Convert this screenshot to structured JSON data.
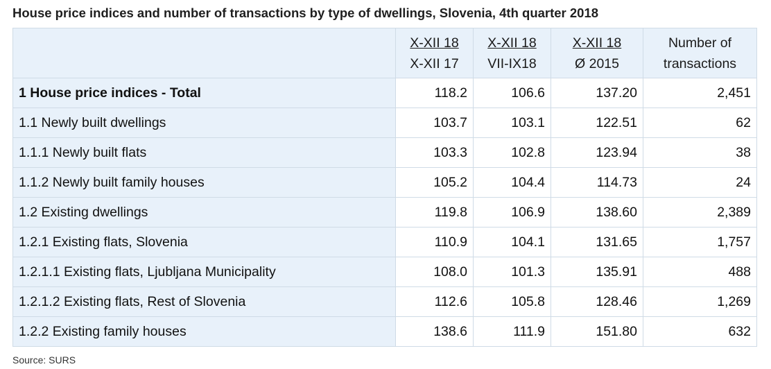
{
  "title": "House price indices and number of transactions by type of dwellings, Slovenia, 4th quarter 2018",
  "table": {
    "headers": [
      {
        "top": "",
        "bottom": ""
      },
      {
        "top": "X-XII 18",
        "bottom": "X-XII 17"
      },
      {
        "top": "X-XII 18",
        "bottom": "VII-IX18"
      },
      {
        "top": "X-XII 18",
        "bottom": "Ø 2015"
      },
      {
        "top": "Number of",
        "bottom": "transactions"
      }
    ],
    "rows": [
      {
        "label": "1 House price indices - Total",
        "c1": "118.2",
        "c2": "106.6",
        "c3": "137.20",
        "c4": "2,451"
      },
      {
        "label": "1.1 Newly built dwellings",
        "c1": "103.7",
        "c2": "103.1",
        "c3": "122.51",
        "c4": "62"
      },
      {
        "label": "1.1.1 Newly built flats",
        "c1": "103.3",
        "c2": "102.8",
        "c3": "123.94",
        "c4": "38"
      },
      {
        "label": "1.1.2 Newly built family houses",
        "c1": "105.2",
        "c2": "104.4",
        "c3": "114.73",
        "c4": "24"
      },
      {
        "label": "1.2 Existing dwellings",
        "c1": "119.8",
        "c2": "106.9",
        "c3": "138.60",
        "c4": "2,389"
      },
      {
        "label": "1.2.1 Existing flats, Slovenia",
        "c1": "110.9",
        "c2": "104.1",
        "c3": "131.65",
        "c4": "1,757"
      },
      {
        "label": "1.2.1.1 Existing flats, Ljubljana Municipality",
        "c1": "108.0",
        "c2": "101.3",
        "c3": "135.91",
        "c4": "488"
      },
      {
        "label": "1.2.1.2 Existing flats, Rest of Slovenia",
        "c1": "112.6",
        "c2": "105.8",
        "c3": "128.46",
        "c4": "1,269"
      },
      {
        "label": "1.2.2 Existing family houses",
        "c1": "138.6",
        "c2": "111.9",
        "c3": "151.80",
        "c4": "632"
      }
    ]
  },
  "source": "Source: SURS"
}
